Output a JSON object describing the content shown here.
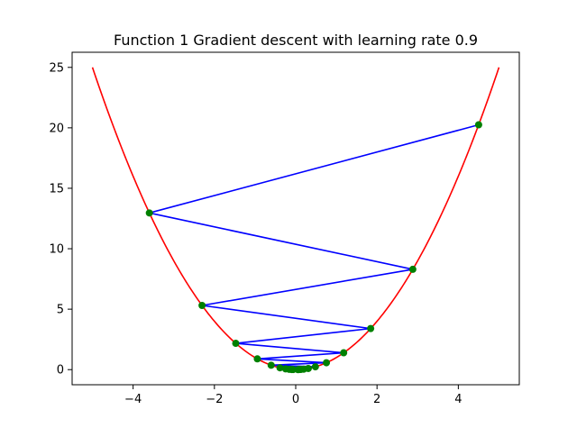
{
  "chart_data": {
    "type": "line",
    "title": "Function 1 Gradient descent with learning rate 0.9",
    "xlabel": "",
    "ylabel": "",
    "xlim": [
      -5.5,
      5.5
    ],
    "ylim": [
      -1.25,
      26.25
    ],
    "x_ticks": [
      -4,
      -2,
      0,
      2,
      4
    ],
    "x_tick_labels": [
      "−4",
      "−2",
      "0",
      "2",
      "4"
    ],
    "y_ticks": [
      0,
      5,
      10,
      15,
      20,
      25
    ],
    "y_tick_labels": [
      "0",
      "5",
      "10",
      "15",
      "20",
      "25"
    ],
    "grid": false,
    "series": [
      {
        "kind": "function",
        "function": "x^2",
        "x_range": [
          -5,
          5
        ],
        "color": "#ff0000"
      },
      {
        "kind": "path",
        "color": "#0000ff",
        "marker_color": "#008000",
        "x": [
          4.5,
          -3.6,
          2.88,
          -2.304,
          1.8432,
          -1.47456,
          1.179648,
          -0.943718,
          0.754975,
          -0.60398,
          0.483184,
          -0.386547,
          0.309238,
          -0.24739,
          0.197912,
          -0.15833,
          0.126664,
          -0.101331,
          0.081065,
          -0.064852,
          0.051881
        ],
        "y": [
          20.25,
          12.96,
          8.2944,
          5.308416,
          3.397386,
          2.174327,
          1.391569,
          0.890604,
          0.569987,
          0.364792,
          0.233467,
          0.149419,
          0.095628,
          0.061202,
          0.039169,
          0.025068,
          0.016044,
          0.010268,
          0.006572,
          0.004206,
          0.002692
        ]
      }
    ]
  }
}
